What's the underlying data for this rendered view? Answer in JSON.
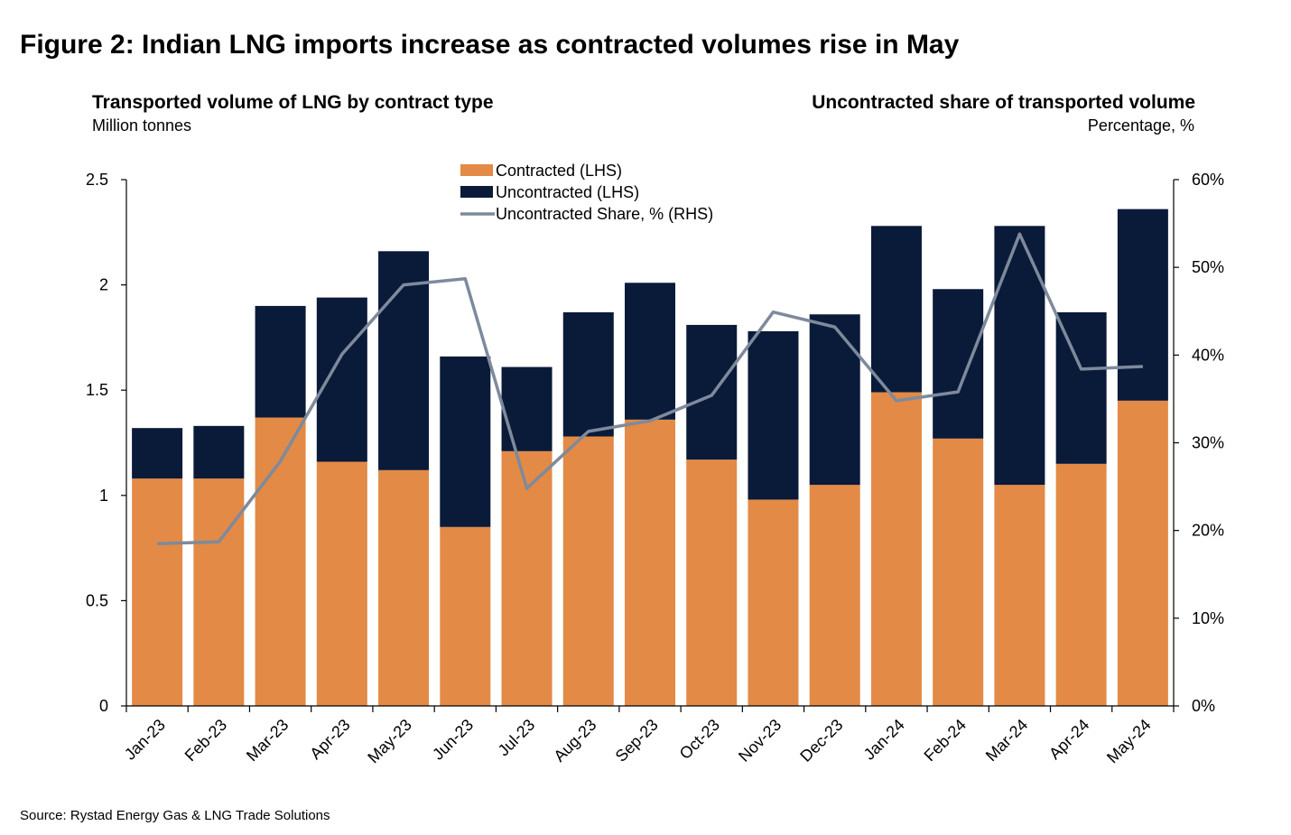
{
  "chart_data": {
    "type": "bar",
    "stacked": true,
    "title": "Figure 2: Indian LNG imports increase as contracted volumes rise in May",
    "left_title": "Transported volume of LNG by contract type",
    "left_unit": "Million tonnes",
    "right_title": "Uncontracted share of transported volume",
    "right_unit": "Percentage, %",
    "source": "Source: Rystad Energy Gas & LNG Trade Solutions",
    "categories": [
      "Jan-23",
      "Feb-23",
      "Mar-23",
      "Apr-23",
      "May-23",
      "Jun-23",
      "Jul-23",
      "Aug-23",
      "Sep-23",
      "Oct-23",
      "Nov-23",
      "Dec-23",
      "Jan-24",
      "Feb-24",
      "Mar-24",
      "Apr-24",
      "May-24"
    ],
    "series": [
      {
        "name": "Contracted (LHS)",
        "axis": "left",
        "kind": "bar",
        "color": "#E38A46",
        "values": [
          1.08,
          1.08,
          1.37,
          1.16,
          1.12,
          0.85,
          1.21,
          1.28,
          1.36,
          1.17,
          0.98,
          1.05,
          1.49,
          1.27,
          1.05,
          1.15,
          1.45
        ]
      },
      {
        "name": "Uncontracted (LHS)",
        "axis": "left",
        "kind": "bar",
        "color": "#0A1A39",
        "values": [
          0.24,
          0.25,
          0.53,
          0.78,
          1.04,
          0.81,
          0.4,
          0.59,
          0.65,
          0.64,
          0.8,
          0.81,
          0.79,
          0.71,
          1.23,
          0.72,
          0.91
        ]
      },
      {
        "name": "Uncontracted Share, % (RHS)",
        "axis": "right",
        "kind": "line",
        "color": "#7E8A9C",
        "values": [
          18.5,
          18.7,
          27.9,
          40.1,
          48.0,
          48.7,
          24.8,
          31.3,
          32.5,
          35.4,
          44.9,
          43.2,
          34.8,
          35.8,
          53.8,
          38.4,
          38.7
        ]
      }
    ],
    "left_axis": {
      "min": 0,
      "max": 2.5,
      "ticks": [
        "0",
        "0.5",
        "1",
        "1.5",
        "2",
        "2.5"
      ]
    },
    "right_axis": {
      "min": 0,
      "max": 60,
      "ticks": [
        "0%",
        "10%",
        "20%",
        "30%",
        "40%",
        "50%",
        "60%"
      ]
    },
    "legend_position": "top-center"
  }
}
